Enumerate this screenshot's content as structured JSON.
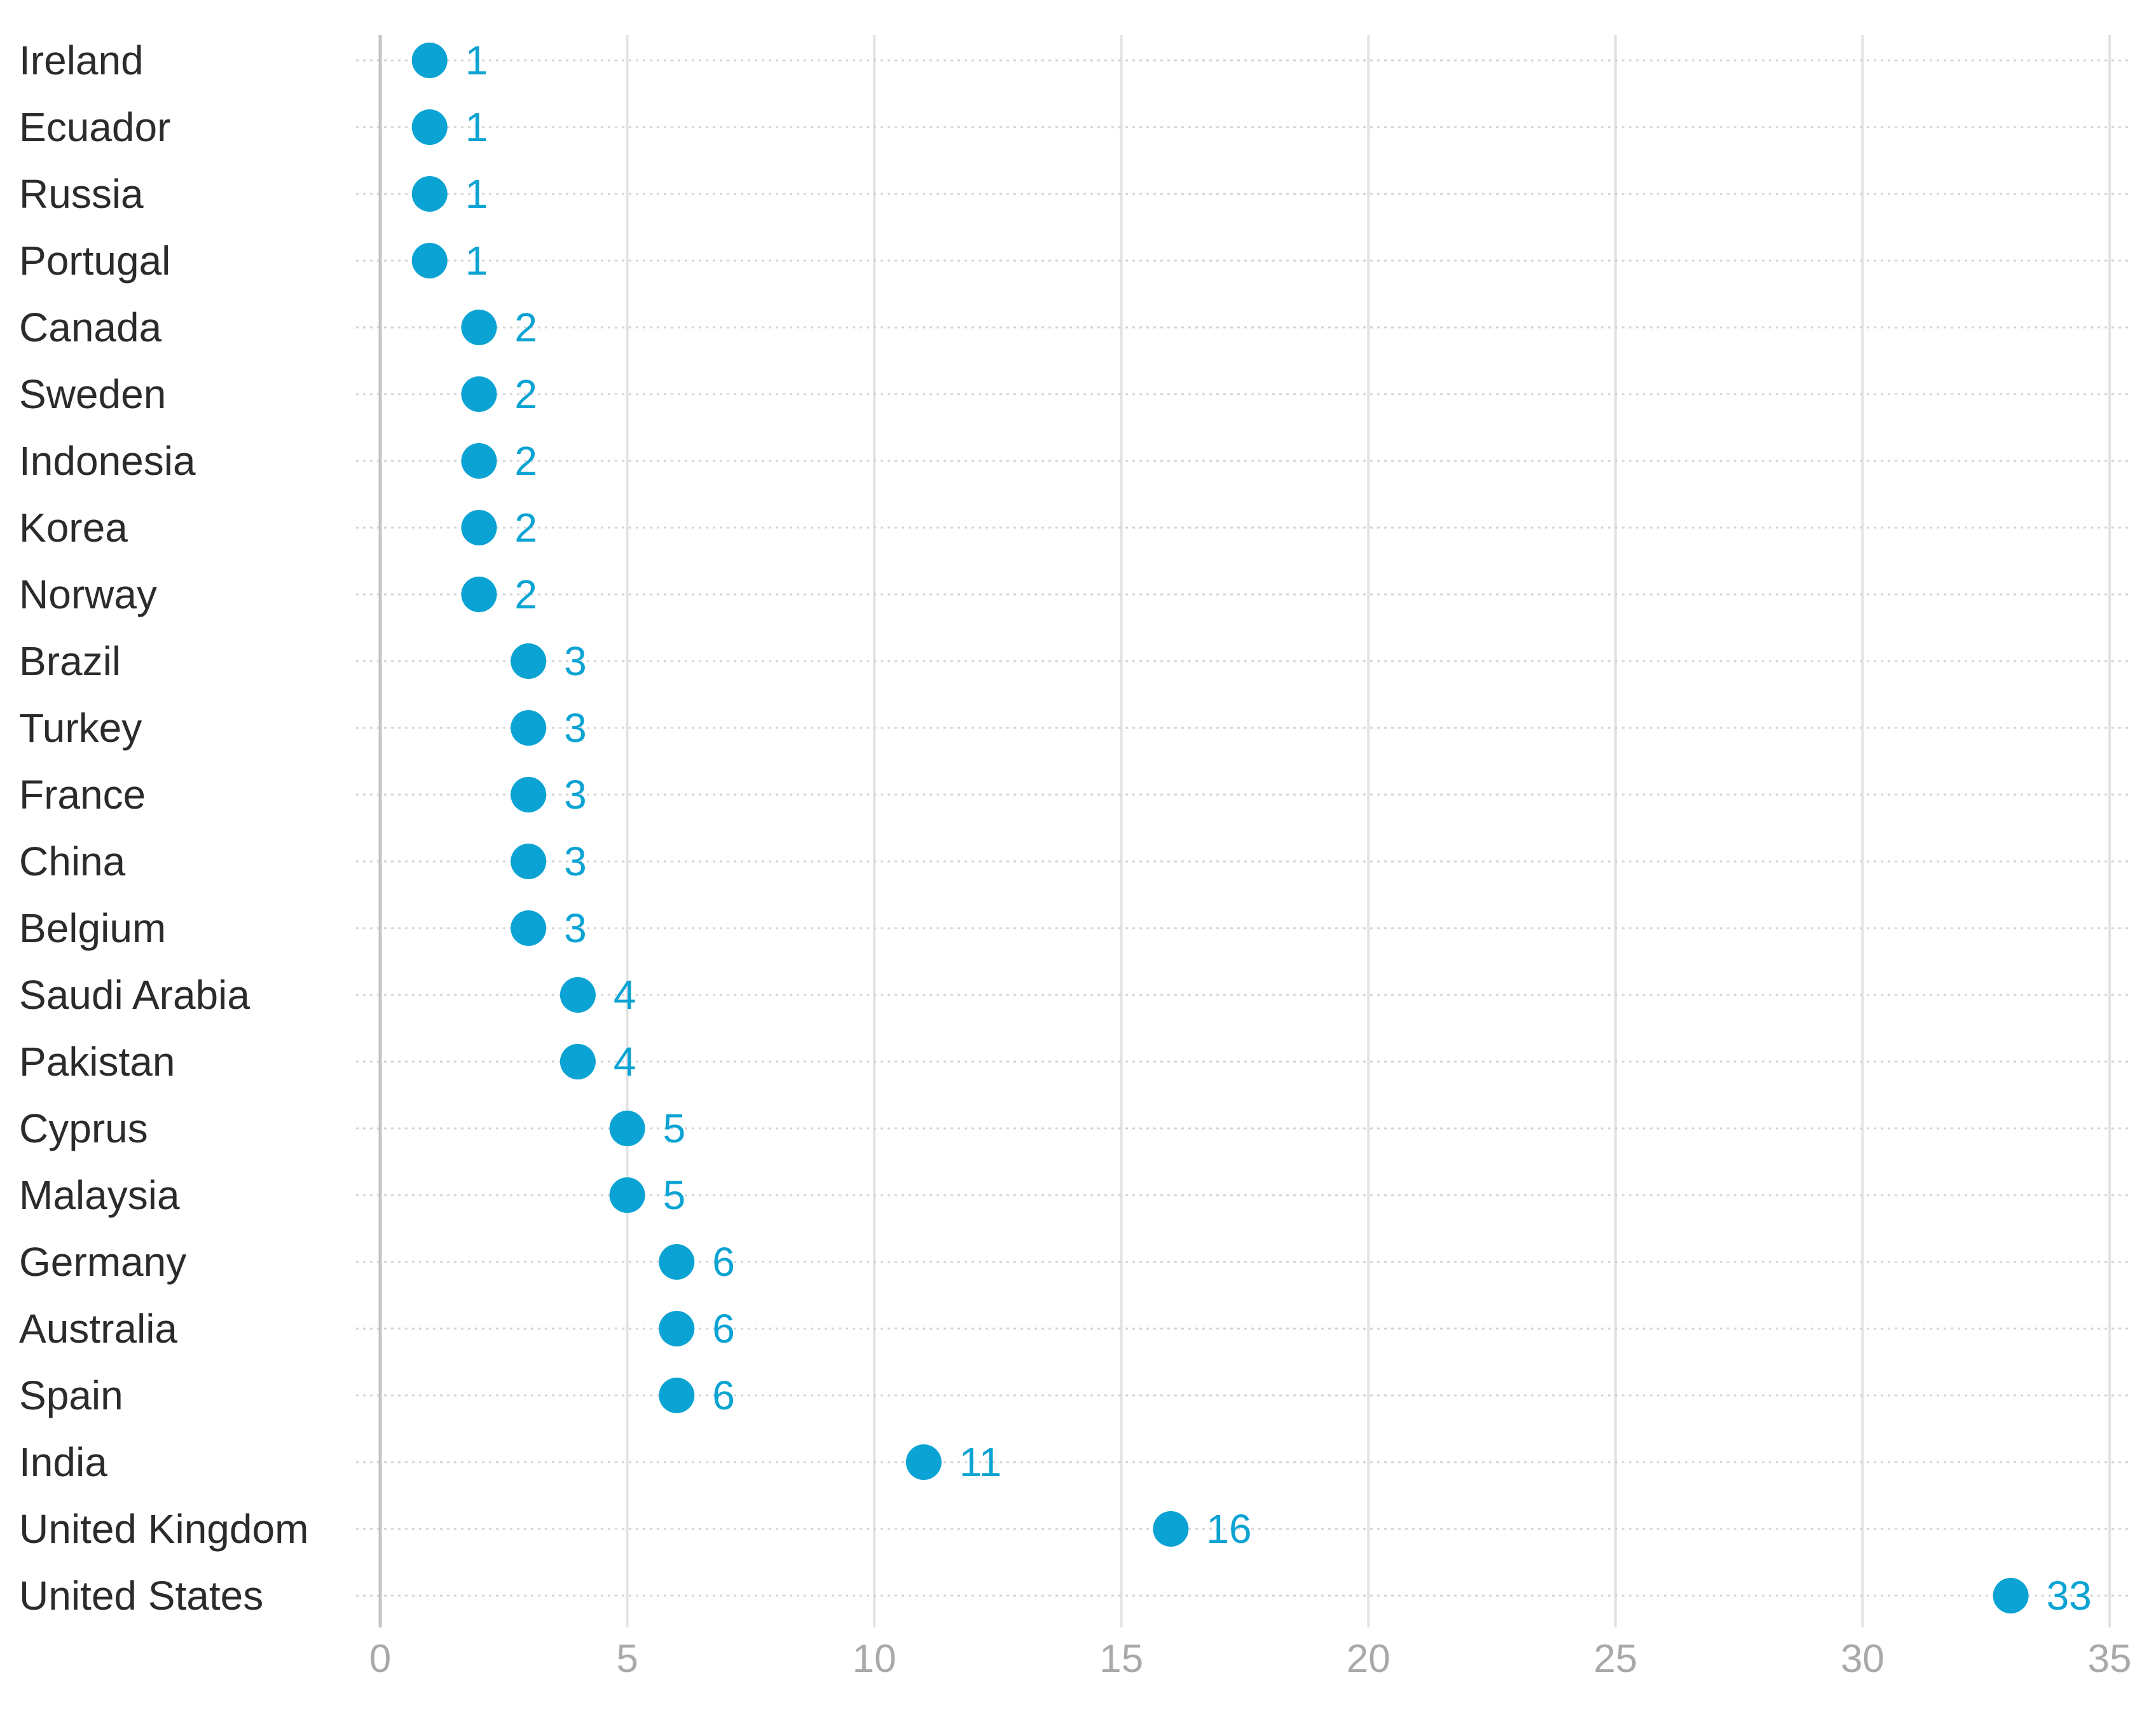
{
  "chart_data": {
    "type": "scatter",
    "title": "",
    "xlabel": "",
    "ylabel": "",
    "xlim": [
      0,
      35
    ],
    "xticks": [
      "0",
      "5",
      "10",
      "15",
      "20",
      "25",
      "30",
      "35"
    ],
    "grid": true,
    "legend": "none",
    "categories": [
      "Ireland",
      "Ecuador",
      "Russia",
      "Portugal",
      "Canada",
      "Sweden",
      "Indonesia",
      "Korea",
      "Norway",
      "Brazil",
      "Turkey",
      "France",
      "China",
      "Belgium",
      "Saudi Arabia",
      "Pakistan",
      "Cyprus",
      "Malaysia",
      "Germany",
      "Australia",
      "Spain",
      "India",
      "United Kingdom",
      "United States"
    ],
    "values": [
      1,
      1,
      1,
      1,
      2,
      2,
      2,
      2,
      2,
      3,
      3,
      3,
      3,
      3,
      4,
      4,
      5,
      5,
      6,
      6,
      6,
      11,
      16,
      33
    ],
    "labels": [
      "1",
      "1",
      "1",
      "1",
      "2",
      "2",
      "2",
      "2",
      "2",
      "3",
      "3",
      "3",
      "3",
      "3",
      "4",
      "4",
      "5",
      "5",
      "6",
      "6",
      "6",
      "11",
      "16",
      "33"
    ]
  },
  "colors": {
    "dot": "#0aa3d3",
    "value_text": "#0aa3d3",
    "category_text": "#2b2b2b",
    "tick_text": "#a9a9a9",
    "gridline": "#e3e3e3",
    "row_guide": "#d4d4d4",
    "axis_line": "#c4c4c4"
  }
}
